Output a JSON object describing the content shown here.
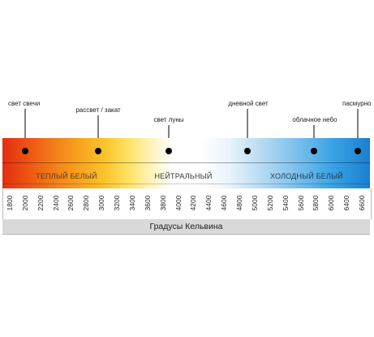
{
  "labels": [
    {
      "id": "candle",
      "text": "свет свечи"
    },
    {
      "id": "sunrise",
      "text": "рассвет / закат"
    },
    {
      "id": "moon",
      "text": "свет луны"
    },
    {
      "id": "daylight",
      "text": "дневной свет"
    },
    {
      "id": "cloudy",
      "text": "облачное небо"
    },
    {
      "id": "overcast",
      "text": "пасмурно"
    }
  ],
  "zones": {
    "warm": "ТЕПЛЫЙ БЕЛЫЙ",
    "neutral": "НЕЙТРАЛЬНЫЙ",
    "cold": "ХОЛОДНЫЙ БЕЛЫЙ"
  },
  "scale_ticks": [
    "1800",
    "2000",
    "2200",
    "2400",
    "2600",
    "2800",
    "3000",
    "3200",
    "3400",
    "3600",
    "3800",
    "4000",
    "4200",
    "4400",
    "4600",
    "4800",
    "5000",
    "5200",
    "5400",
    "5600",
    "5800",
    "6000",
    "6400",
    "6600"
  ],
  "footer": "Градусы Кельвина",
  "colors": {
    "warm": "#e52d10",
    "neutral": "#ffffff",
    "cold": "#1a7fd0"
  }
}
